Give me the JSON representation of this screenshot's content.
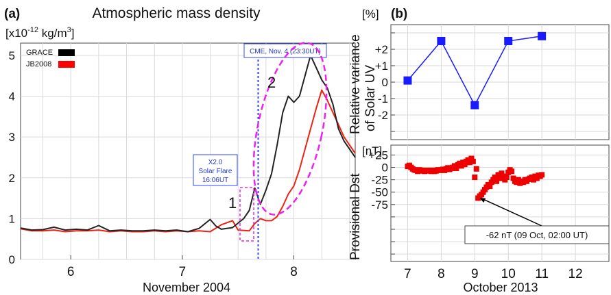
{
  "chart_data": [
    {
      "type": "line",
      "panel_label": "(a)",
      "title": "Atmospheric mass density",
      "ylabel_prefix": "[x10",
      "ylabel_exp": "-12",
      "ylabel_unit": " kg/m",
      "ylabel_exp2": "3",
      "ylabel_suffix": "]",
      "xlabel": "November 2004",
      "xlim": [
        5.55,
        8.55
      ],
      "ylim": [
        0,
        5.3
      ],
      "xticks": [
        6,
        7,
        8
      ],
      "yticks": [
        0,
        1,
        2,
        3,
        4,
        5
      ],
      "legend": [
        {
          "name": "GRACE",
          "color": "#000000"
        },
        {
          "name": "JB2008",
          "color": "#ff0000"
        }
      ],
      "series": [
        {
          "name": "GRACE",
          "color": "#222222",
          "x": [
            5.55,
            5.65,
            5.75,
            5.85,
            5.95,
            6.05,
            6.15,
            6.25,
            6.35,
            6.45,
            6.55,
            6.65,
            6.75,
            6.85,
            6.95,
            7.05,
            7.15,
            7.25,
            7.3,
            7.35,
            7.45,
            7.55,
            7.6,
            7.65,
            7.7,
            7.75,
            7.8,
            7.85,
            7.9,
            7.95,
            8.0,
            8.05,
            8.1,
            8.15,
            8.2,
            8.25,
            8.3,
            8.35,
            8.4,
            8.45,
            8.5,
            8.55
          ],
          "y": [
            0.77,
            0.72,
            0.73,
            0.79,
            0.72,
            0.74,
            0.72,
            0.83,
            0.7,
            0.72,
            0.7,
            0.7,
            0.72,
            0.7,
            0.72,
            0.68,
            0.76,
            0.98,
            0.82,
            0.74,
            0.78,
            1.0,
            1.2,
            1.75,
            1.35,
            1.7,
            2.1,
            2.8,
            3.6,
            4.0,
            3.85,
            4.0,
            4.5,
            5.0,
            4.7,
            4.4,
            4.2,
            3.8,
            3.2,
            2.9,
            2.7,
            2.5
          ]
        },
        {
          "name": "JB2008",
          "color": "#ee2211",
          "x": [
            5.55,
            5.65,
            5.75,
            5.85,
            5.95,
            6.05,
            6.15,
            6.25,
            6.35,
            6.45,
            6.55,
            6.65,
            6.75,
            6.85,
            6.95,
            7.05,
            7.15,
            7.25,
            7.35,
            7.45,
            7.5,
            7.6,
            7.65,
            7.7,
            7.75,
            7.8,
            7.85,
            7.9,
            7.95,
            8.0,
            8.05,
            8.1,
            8.15,
            8.2,
            8.25,
            8.3,
            8.35,
            8.4,
            8.45,
            8.5,
            8.55
          ],
          "y": [
            0.75,
            0.7,
            0.7,
            0.72,
            0.68,
            0.7,
            0.7,
            0.72,
            0.68,
            0.7,
            0.68,
            0.68,
            0.7,
            0.68,
            0.7,
            0.68,
            0.7,
            0.68,
            0.85,
            0.95,
            0.72,
            0.7,
            0.88,
            1.0,
            0.95,
            0.95,
            1.05,
            1.3,
            1.6,
            1.8,
            2.2,
            2.7,
            3.2,
            3.7,
            4.15,
            3.9,
            3.6,
            3.3,
            3.0,
            2.8,
            2.6
          ]
        }
      ],
      "vline_x": 7.68,
      "vline_label": "CME, Nov. 4 (23:30UT)",
      "flare_label_lines": [
        "X2.0",
        "Solar Flare",
        "16:06UT"
      ],
      "annotation_1": "1",
      "annotation_2": "2"
    },
    {
      "type": "line",
      "panel_label": "(b)",
      "xlabel": "October 2013",
      "xlim": [
        6.5,
        13
      ],
      "xticks": [
        7,
        8,
        9,
        10,
        11,
        12
      ],
      "top": {
        "ylabel_line1": "Relative variance",
        "ylabel_line2": "of Solar UV",
        "unit": "[%]",
        "ylim": [
          -3.5,
          3.5
        ],
        "yticks": [
          -2,
          -1,
          0,
          1,
          2
        ],
        "ytick_labels": [
          "-2",
          "-1",
          "0",
          "+1",
          "+2"
        ],
        "series": [
          {
            "name": "",
            "color": "#1a1aff",
            "x": [
              7,
              8,
              9,
              10,
              11
            ],
            "y": [
              0.1,
              2.5,
              -1.4,
              2.5,
              2.8
            ]
          }
        ]
      },
      "bottom": {
        "ylabel": "Provisional Dst",
        "unit": "[nT]",
        "ylim": [
          -190,
          45
        ],
        "yticks": [
          -75,
          -50,
          -25,
          0,
          25
        ],
        "ytick_labels": [
          "-75",
          "-50",
          "-25",
          "0",
          "+25"
        ],
        "series": [
          {
            "name": "",
            "color": "#ee0000",
            "x": [
              7.0,
              7.05,
              7.1,
              7.15,
              7.2,
              7.25,
              7.3,
              7.35,
              7.4,
              7.45,
              7.5,
              7.55,
              7.6,
              7.65,
              7.7,
              7.75,
              7.8,
              7.85,
              7.9,
              7.95,
              8.0,
              8.05,
              8.1,
              8.15,
              8.2,
              8.25,
              8.3,
              8.35,
              8.4,
              8.45,
              8.5,
              8.55,
              8.6,
              8.65,
              8.7,
              8.75,
              8.8,
              8.85,
              8.9,
              8.95,
              9.0,
              9.05,
              9.1,
              9.15,
              9.2,
              9.25,
              9.3,
              9.35,
              9.4,
              9.45,
              9.5,
              9.55,
              9.6,
              9.65,
              9.7,
              9.75,
              9.8,
              9.85,
              9.9,
              9.95,
              10.0,
              10.05,
              10.1,
              10.15,
              10.2,
              10.25,
              10.3,
              10.35,
              10.4,
              10.45,
              10.5,
              10.55,
              10.6,
              10.65,
              10.7,
              10.75,
              10.8,
              10.85,
              10.9,
              10.95,
              11.0
            ],
            "y": [
              2,
              4,
              0,
              -3,
              -5,
              -6,
              -8,
              -5,
              -7,
              -6,
              -8,
              -7,
              -6,
              -7,
              -8,
              -6,
              -8,
              -7,
              -5,
              -6,
              -5,
              -4,
              -6,
              -3,
              -1,
              -4,
              -2,
              0,
              3,
              -2,
              5,
              8,
              3,
              10,
              6,
              12,
              15,
              10,
              18,
              12,
              -20,
              -3,
              -62,
              -58,
              -55,
              -50,
              -45,
              -40,
              -35,
              -38,
              -30,
              -25,
              -20,
              -28,
              -15,
              -22,
              -12,
              -18,
              -25,
              -20,
              -10,
              -5,
              -8,
              -22,
              -28,
              -30,
              -25,
              -32,
              -28,
              -30,
              -25,
              -28,
              -24,
              -22,
              -20,
              -25,
              -18,
              -22,
              -16,
              -18,
              -15
            ]
          }
        ],
        "annotation": "-62 nT (09 Oct, 02:00 UT)",
        "annotation_point": [
          9.1,
          -62
        ]
      }
    }
  ]
}
